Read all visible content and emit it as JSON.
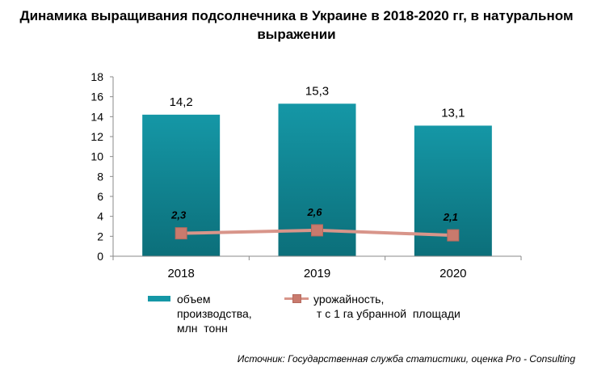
{
  "title": "Динамика выращивания подсолнечника в Украине в 2018-2020 гг, в натуральном выражении",
  "source": "Источник: Государственная служба статистики, оценка Pro - Consulting",
  "colors": {
    "bar": "#1597a6",
    "bar_dark": "#0c6f7a",
    "line": "#d8958a",
    "marker": "#c97a6d"
  },
  "chart_data": {
    "type": "bar",
    "categories": [
      "2018",
      "2019",
      "2020"
    ],
    "ylim": [
      0,
      18
    ],
    "yticks": [
      "0",
      "2",
      "4",
      "6",
      "8",
      "10",
      "12",
      "14",
      "16",
      "18"
    ],
    "series": [
      {
        "name": "объем производства, млн тонн",
        "type": "bar",
        "values": [
          14.2,
          15.3,
          13.1
        ],
        "labels": [
          "14,2",
          "15,3",
          "13,1"
        ]
      },
      {
        "name": "урожайность, т с 1 га убранной площади",
        "type": "line",
        "values": [
          2.3,
          2.6,
          2.1
        ],
        "labels": [
          "2,3",
          "2,6",
          "2,1"
        ]
      }
    ],
    "legend": {
      "bar_label": "объем\nпроизводства,\nмлн  тонн",
      "line_label": "урожайность,\n т с 1 га убранной  площади"
    }
  }
}
